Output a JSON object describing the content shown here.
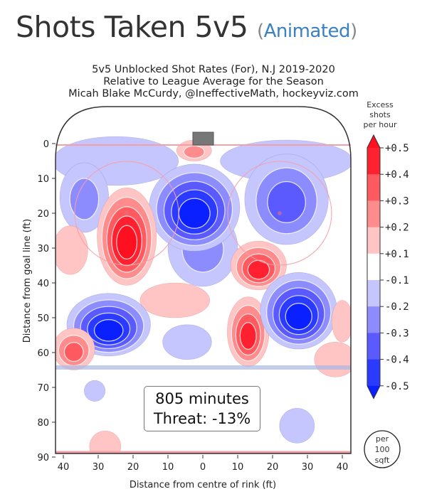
{
  "header": {
    "title": "Shots Taken 5v5",
    "paren_open": "(",
    "animated_link": "Animated",
    "paren_close": ")"
  },
  "chart_data": {
    "type": "heatmap",
    "title_lines": [
      "5v5 Unblocked Shot Rates (For), N.J 2019-2020",
      "Relative to League Average for the Season",
      "Micah Blake McCurdy, @IneffectiveMath, hockeyviz.com"
    ],
    "xlabel": "Distance from centre of rink (ft)",
    "ylabel": "Distance from goal line (ft)",
    "x_ticks": [
      "40",
      "30",
      "20",
      "10",
      "0",
      "10",
      "20",
      "30",
      "40"
    ],
    "x_tick_values": [
      -40,
      -30,
      -20,
      -10,
      0,
      10,
      20,
      30,
      40
    ],
    "y_ticks": [
      "0",
      "10",
      "20",
      "30",
      "40",
      "50",
      "60",
      "70",
      "80",
      "90"
    ],
    "y_tick_values": [
      0,
      10,
      20,
      30,
      40,
      50,
      60,
      70,
      80,
      90
    ],
    "xlim": [
      -42.5,
      42.5
    ],
    "ylim": [
      90,
      -11
    ],
    "colorbar": {
      "title_lines": [
        "Excess",
        "shots",
        "per hour"
      ],
      "ticks": [
        "+0.5",
        "+0.4",
        "+0.3",
        "+0.2",
        "+0.1",
        "-0.1",
        "-0.2",
        "-0.3",
        "-0.4",
        "-0.5"
      ],
      "colors_positive": [
        "#ffc4c4",
        "#ff8c8c",
        "#ff5a60",
        "#ff2030",
        "#ff1020"
      ],
      "colors_negative": [
        "#c6c6ff",
        "#8c8cff",
        "#5a5aff",
        "#2a3aff",
        "#0a20ff"
      ],
      "unit_lines": [
        "per",
        "100",
        "sqft"
      ]
    },
    "hotspots": [
      {
        "x": -25,
        "y": 5,
        "rx": 18,
        "ry": 7,
        "peak": -0.1
      },
      {
        "x": 24,
        "y": 5,
        "rx": 19,
        "ry": 6,
        "peak": -0.1
      },
      {
        "x": -34,
        "y": 15.5,
        "rx": 7,
        "ry": 10,
        "peak": -0.2
      },
      {
        "x": 24,
        "y": 16,
        "rx": 12,
        "ry": 13,
        "peak": -0.3
      },
      {
        "x": 0,
        "y": 30,
        "rx": 10,
        "ry": 11,
        "peak": -0.2
      },
      {
        "x": -2.4,
        "y": 18.4,
        "rx": 13,
        "ry": 12.5,
        "peak": -0.5
      },
      {
        "x": -2.5,
        "y": 2,
        "rx": 5,
        "ry": 3,
        "peak": 0.2
      },
      {
        "x": -8,
        "y": 45,
        "rx": 10,
        "ry": 5,
        "peak": 0.1
      },
      {
        "x": -21.8,
        "y": 26.7,
        "rx": 8.5,
        "ry": 14,
        "peak": 0.5
      },
      {
        "x": -38,
        "y": 30.6,
        "rx": 5,
        "ry": 7,
        "peak": 0.1
      },
      {
        "x": 16,
        "y": 35,
        "rx": 8,
        "ry": 7,
        "peak": 0.4
      },
      {
        "x": 13,
        "y": 54,
        "rx": 6,
        "ry": 10,
        "peak": 0.4
      },
      {
        "x": -27,
        "y": 52,
        "rx": 12,
        "ry": 9,
        "peak": -0.5
      },
      {
        "x": 27.5,
        "y": 48,
        "rx": 11,
        "ry": 11,
        "peak": -0.5
      },
      {
        "x": -4.5,
        "y": 57,
        "rx": 7,
        "ry": 5,
        "peak": -0.1
      },
      {
        "x": -37,
        "y": 59,
        "rx": 6,
        "ry": 6,
        "peak": 0.3
      },
      {
        "x": 40,
        "y": 51,
        "rx": 3,
        "ry": 6,
        "peak": 0.1
      },
      {
        "x": 38,
        "y": 62,
        "rx": 6,
        "ry": 5,
        "peak": 0.1
      },
      {
        "x": -31,
        "y": 71,
        "rx": 3,
        "ry": 3,
        "peak": -0.1
      },
      {
        "x": 27,
        "y": 81,
        "rx": 5,
        "ry": 5,
        "peak": -0.1
      },
      {
        "x": -28,
        "y": 87,
        "rx": 4.5,
        "ry": 4.5,
        "peak": 0.1
      }
    ],
    "annotation": {
      "minutes": "805 minutes",
      "threat": "Threat: -13%"
    }
  }
}
